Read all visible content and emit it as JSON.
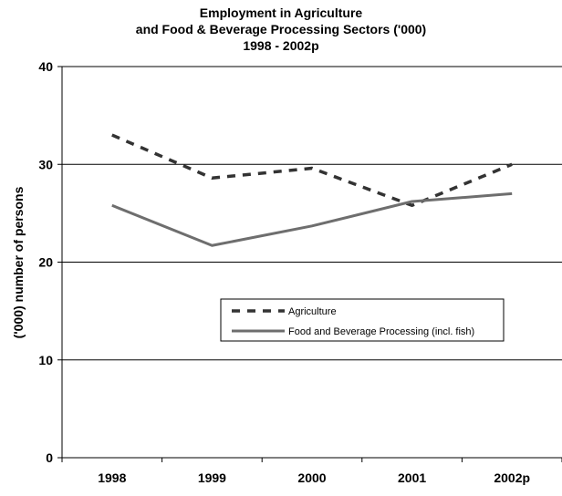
{
  "chart_data": {
    "type": "line",
    "title": [
      "Employment in Agriculture",
      "and Food & Beverage Processing Sectors ('000)",
      "1998 - 2002p"
    ],
    "xlabel": "",
    "ylabel": "('000) number of persons",
    "categories": [
      "1998",
      "1999",
      "2000",
      "2001",
      "2002p"
    ],
    "ylim": [
      0,
      40
    ],
    "yticks": [
      "0",
      "10",
      "20",
      "30",
      "40"
    ],
    "grid": true,
    "legend_position": "center-right",
    "series": [
      {
        "name": "Agriculture",
        "values": [
          33.0,
          28.6,
          29.6,
          25.8,
          30.0
        ],
        "style": "dashed",
        "color": "#333333"
      },
      {
        "name": "Food and Beverage Processing (incl. fish)",
        "values": [
          25.8,
          21.7,
          23.7,
          26.2,
          27.0
        ],
        "style": "solid",
        "color": "#6e6e6e"
      }
    ]
  }
}
